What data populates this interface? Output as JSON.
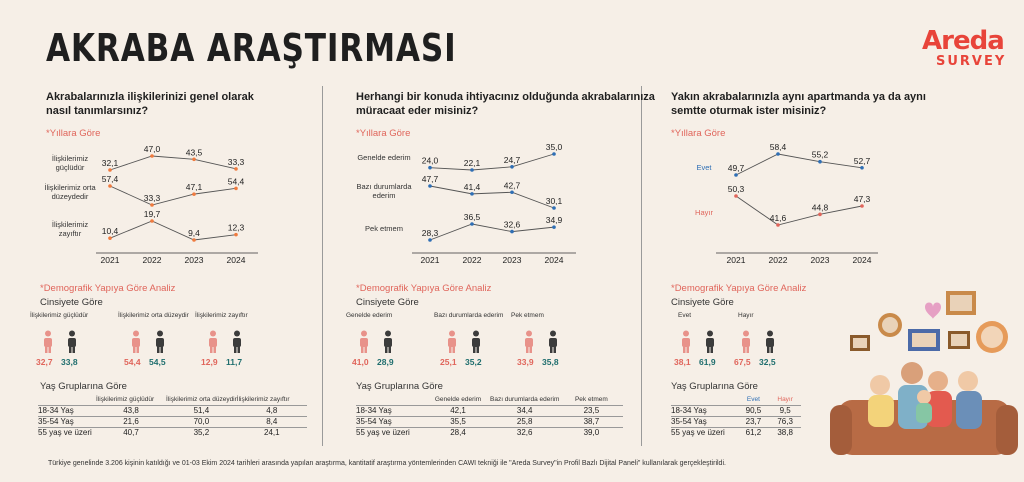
{
  "title": "AKRABA ARAŞTIRMASI",
  "logo": {
    "brand": "Areda",
    "sub": "SURVEY"
  },
  "footnote": "Türkiye genelinde 3.206 kişinin katıldığı ve 01-03 Ekim 2024 tarihleri arasında yapılan araştırma, kantitatif araştırma yöntemlerinden CAWI tekniği ile \"Areda Survey\"in Profil Bazlı Dijital Paneli\" kullanılarak gerçekleştirildi.",
  "colors": {
    "pink": "#e0655b",
    "teal": "#1f6e6e",
    "blue": "#2f6fb5",
    "orange": "#f07b3f",
    "bg": "#f6efe7"
  },
  "panels": [
    {
      "question": [
        "Akrabalarınızla ilişkilerinizi genel olarak",
        "nasıl tanımlarsınız?"
      ],
      "years_label": "*Yıllara Göre",
      "demo_label": "*Demografik Yapıya Göre Analiz",
      "gender_label": "Cinsiyete Göre",
      "age_label": "Yaş Gruplarına Göre",
      "gender_groups": [
        {
          "label": "İlişkilerimiz güçlüdür",
          "female": "32,7",
          "male": "33,8"
        },
        {
          "label": "İlişkilerimiz orta düzeydir",
          "female": "54,4",
          "male": "54,5"
        },
        {
          "label": "İlişkilerimiz zayıftır",
          "female": "12,9",
          "male": "11,7"
        }
      ],
      "age_headers": [
        "İlişkilerimiz güçlüdür",
        "İlişkilerimiz orta düzeydir",
        "İlişkilerimiz zayıftır"
      ],
      "age_rows": [
        {
          "group": "18-34 Yaş",
          "values": [
            "43,8",
            "51,4",
            "4,8"
          ]
        },
        {
          "group": "35-54 Yaş",
          "values": [
            "21,6",
            "70,0",
            "8,4"
          ]
        },
        {
          "group": "55 yaş ve üzeri",
          "values": [
            "40,7",
            "35,2",
            "24,1"
          ]
        }
      ]
    },
    {
      "question": [
        "Herhangi bir konuda ihtiyacınız olduğunda akrabalarınıza",
        "müracaat eder misiniz?"
      ],
      "years_label": "*Yıllara Göre",
      "demo_label": "*Demografik Yapıya Göre Analiz",
      "gender_label": "Cinsiyete Göre",
      "age_label": "Yaş Gruplarına Göre",
      "gender_groups": [
        {
          "label": "Genelde ederim",
          "female": "41,0",
          "male": "28,9"
        },
        {
          "label": "Bazı durumlarda ederim",
          "female": "25,1",
          "male": "35,2"
        },
        {
          "label": "Pek etmem",
          "female": "33,9",
          "male": "35,8"
        }
      ],
      "age_headers": [
        "Genelde ederim",
        "Bazı durumlarda ederim",
        "Pek etmem"
      ],
      "age_rows": [
        {
          "group": "18-34 Yaş",
          "values": [
            "42,1",
            "34,4",
            "23,5"
          ]
        },
        {
          "group": "35-54 Yaş",
          "values": [
            "35,5",
            "25,8",
            "38,7"
          ]
        },
        {
          "group": "55 yaş ve üzeri",
          "values": [
            "28,4",
            "32,6",
            "39,0"
          ]
        }
      ]
    },
    {
      "question": [
        "Yakın akrabalarınızla aynı apartmanda ya da aynı",
        "semtte oturmak ister misiniz?"
      ],
      "years_label": "*Yıllara Göre",
      "demo_label": "*Demografik Yapıya Göre Analiz",
      "gender_label": "Cinsiyete Göre",
      "age_label": "Yaş Gruplarına Göre",
      "gender_groups": [
        {
          "label": "Evet",
          "female": "38,1",
          "male": "61,9"
        },
        {
          "label": "Hayır",
          "female": "67,5",
          "male": "32,5"
        }
      ],
      "age_headers": [
        "Evet",
        "Hayır"
      ],
      "age_rows": [
        {
          "group": "18-34 Yaş",
          "values": [
            "90,5",
            "9,5"
          ]
        },
        {
          "group": "35-54 Yaş",
          "values": [
            "23,7",
            "76,3"
          ]
        },
        {
          "group": "55 yaş ve üzeri",
          "values": [
            "61,2",
            "38,8"
          ]
        }
      ]
    }
  ],
  "chart_data": [
    {
      "type": "line",
      "categories": [
        "2021",
        "2022",
        "2023",
        "2024"
      ],
      "series": [
        {
          "name": "İlişkilerimiz güçlüdür",
          "values": [
            32.1,
            47.0,
            43.5,
            33.3
          ],
          "labels": [
            "32,1",
            "47,0",
            "43,5",
            "33,3"
          ]
        },
        {
          "name": "İlişkilerimiz orta düzeydedir",
          "values": [
            57.4,
            33.3,
            47.1,
            54.4
          ],
          "labels": [
            "57,4",
            "33,3",
            "47,1",
            "54,4"
          ]
        },
        {
          "name": "İlişkilerimiz zayıftır",
          "values": [
            10.4,
            19.7,
            9.4,
            12.3
          ],
          "labels": [
            "10,4",
            "19,7",
            "9,4",
            "12,3"
          ]
        }
      ]
    },
    {
      "type": "line",
      "categories": [
        "2021",
        "2022",
        "2023",
        "2024"
      ],
      "series": [
        {
          "name": "Genelde ederim",
          "values": [
            24.0,
            22.1,
            24.7,
            35.0
          ],
          "labels": [
            "24,0",
            "22,1",
            "24,7",
            "35,0"
          ]
        },
        {
          "name": "Bazı durumlarda ederim",
          "values": [
            47.7,
            41.4,
            42.7,
            30.1
          ],
          "labels": [
            "47,7",
            "41,4",
            "42,7",
            "30,1"
          ]
        },
        {
          "name": "Pek etmem",
          "values": [
            28.3,
            36.5,
            32.6,
            34.9
          ],
          "labels": [
            "28,3",
            "36,5",
            "32,6",
            "34,9"
          ]
        }
      ]
    },
    {
      "type": "line",
      "categories": [
        "2021",
        "2022",
        "2023",
        "2024"
      ],
      "series": [
        {
          "name": "Evet",
          "values": [
            49.7,
            58.4,
            55.2,
            52.7
          ],
          "labels": [
            "49,7",
            "58,4",
            "55,2",
            "52,7"
          ]
        },
        {
          "name": "Hayır",
          "values": [
            50.3,
            41.6,
            44.8,
            47.3
          ],
          "labels": [
            "50,3",
            "41,6",
            "44,8",
            "47,3"
          ]
        }
      ]
    }
  ]
}
